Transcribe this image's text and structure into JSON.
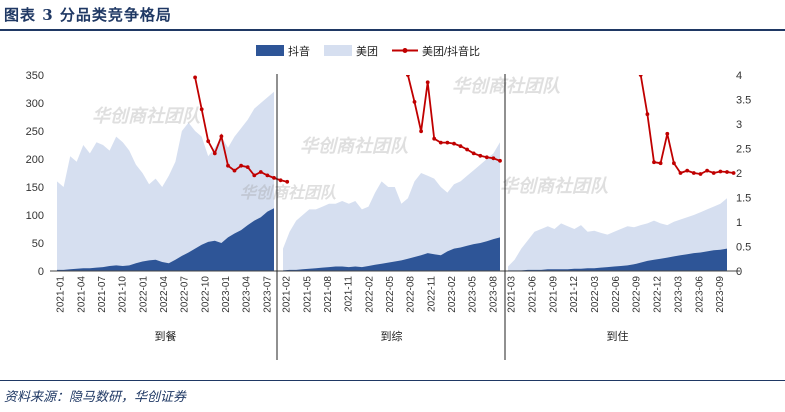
{
  "figure": {
    "title": "图表 3  分品类竞争格局",
    "source": "资料来源：隐马数研，华创证券",
    "watermark": "华创商社团队",
    "colors": {
      "douyin": "#2e5597",
      "meituan": "#d6dff0",
      "ratio": "#c00000",
      "accent": "#1f3864"
    }
  },
  "chart_data": {
    "type": "area",
    "legend": [
      "抖音",
      "美团",
      "美团/抖音比"
    ],
    "legend_position": "top",
    "grid": false,
    "y_left": {
      "min": 0,
      "max": 350,
      "ticks": [
        0,
        50,
        100,
        150,
        200,
        250,
        300,
        350
      ]
    },
    "y_right": {
      "min": 0,
      "max": 4,
      "ticks": [
        "0",
        "0.5",
        "1",
        "1.5",
        "2",
        "2.5",
        "3",
        "3.5",
        "4"
      ]
    },
    "panels": [
      {
        "name": "到餐",
        "x_labels": [
          "2021-01",
          "2021-04",
          "2021-07",
          "2021-10",
          "2022-01",
          "2022-04",
          "2022-07",
          "2022-10",
          "2023-01",
          "2023-04",
          "2023-07"
        ],
        "meituan": [
          160,
          150,
          205,
          195,
          225,
          210,
          230,
          225,
          215,
          240,
          230,
          215,
          190,
          175,
          155,
          165,
          150,
          170,
          195,
          250,
          265,
          250,
          240,
          205,
          220,
          240,
          220,
          240,
          255,
          270,
          290,
          300,
          310,
          320
        ],
        "douyin": [
          2,
          2,
          3,
          4,
          5,
          5,
          6,
          7,
          9,
          10,
          9,
          10,
          14,
          17,
          19,
          20,
          16,
          14,
          20,
          27,
          33,
          40,
          47,
          52,
          54,
          50,
          60,
          67,
          73,
          82,
          90,
          96,
          106,
          112
        ],
        "ratio_start": 21,
        "ratio": [
          3.95,
          3.3,
          2.65,
          2.4,
          2.75,
          2.15,
          2.05,
          2.15,
          2.12,
          1.95,
          2.02,
          1.95,
          1.9,
          1.85,
          1.82
        ]
      },
      {
        "name": "到综",
        "x_labels": [
          "2021-02",
          "2021-05",
          "2021-08",
          "2021-11",
          "2022-02",
          "2022-05",
          "2022-08",
          "2022-11",
          "2023-02",
          "2023-05",
          "2023-08"
        ],
        "meituan": [
          40,
          70,
          90,
          100,
          110,
          110,
          115,
          120,
          120,
          125,
          120,
          125,
          110,
          115,
          140,
          160,
          150,
          150,
          120,
          130,
          160,
          175,
          170,
          165,
          150,
          140,
          155,
          160,
          170,
          180,
          190,
          200,
          210,
          230
        ],
        "douyin": [
          1,
          2,
          2,
          3,
          4,
          5,
          6,
          7,
          8,
          8,
          7,
          8,
          7,
          9,
          11,
          13,
          15,
          17,
          19,
          22,
          25,
          28,
          32,
          30,
          28,
          35,
          40,
          42,
          45,
          48,
          50,
          53,
          57,
          60
        ],
        "ratio_start": 19,
        "ratio": [
          4.0,
          3.45,
          2.85,
          3.85,
          2.7,
          2.62,
          2.62,
          2.6,
          2.55,
          2.48,
          2.4,
          2.35,
          2.32,
          2.3,
          2.25
        ]
      },
      {
        "name": "到住",
        "x_labels": [
          "2021-03",
          "2021-06",
          "2021-09",
          "2021-12",
          "2022-03",
          "2022-06",
          "2022-09",
          "2022-12",
          "2023-03",
          "2023-06",
          "2023-09"
        ],
        "meituan": [
          8,
          20,
          40,
          55,
          70,
          75,
          80,
          75,
          85,
          80,
          75,
          82,
          70,
          72,
          68,
          65,
          70,
          75,
          80,
          78,
          82,
          85,
          90,
          85,
          82,
          88,
          92,
          96,
          100,
          105,
          110,
          115,
          120,
          130
        ],
        "douyin": [
          1,
          1,
          1,
          2,
          2,
          2,
          3,
          3,
          3,
          3,
          4,
          4,
          5,
          5,
          6,
          7,
          8,
          9,
          10,
          12,
          15,
          18,
          20,
          22,
          24,
          26,
          28,
          30,
          32,
          33,
          35,
          37,
          38,
          40
        ],
        "ratio_start": 20,
        "ratio": [
          4.0,
          3.2,
          2.22,
          2.2,
          2.8,
          2.2,
          2.0,
          2.05,
          2.0,
          1.98,
          2.05,
          2.0,
          2.03,
          2.02,
          2.0
        ]
      }
    ]
  }
}
